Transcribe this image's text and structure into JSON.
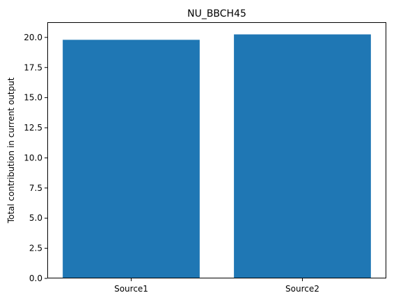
{
  "chart_data": {
    "type": "bar",
    "title": "NU_BBCH45",
    "xlabel": "",
    "ylabel": "Total contribution in current output",
    "categories": [
      "Source1",
      "Source2"
    ],
    "values": [
      19.8,
      20.25
    ],
    "ylim": [
      0,
      21.26
    ],
    "yticks": [
      "0.0",
      "2.5",
      "5.0",
      "7.5",
      "10.0",
      "12.5",
      "15.0",
      "17.5",
      "20.0"
    ],
    "bar_color": "#1f77b4",
    "grid": false,
    "legend": "none"
  }
}
